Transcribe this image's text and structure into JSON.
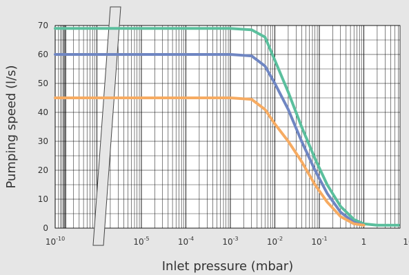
{
  "chart_data": {
    "type": "line",
    "xlabel": "Inlet pressure (mbar)",
    "ylabel": "Pumping speed (l/s)",
    "x_scale": "log",
    "x_axis_break": "between 1e-10 and 1e-5",
    "grid": true,
    "ylim": [
      0,
      70
    ],
    "y_ticks": [
      "0",
      "10",
      "20",
      "30",
      "40",
      "50",
      "60",
      "70"
    ],
    "x_tick_labels": [
      {
        "base": "10",
        "exp": "-10"
      },
      {
        "base": "10",
        "exp": "-5"
      },
      {
        "base": "10",
        "exp": "-4"
      },
      {
        "base": "10",
        "exp": "-3"
      },
      {
        "base": "10",
        "exp": "-2"
      },
      {
        "base": "10",
        "exp": "-1"
      },
      {
        "base": "1",
        "exp": ""
      },
      {
        "base": "10",
        "exp": ""
      }
    ],
    "series": [
      {
        "color": "#5bbf9d",
        "x": [
          1e-10,
          0.001,
          0.003,
          0.006,
          0.01,
          0.02,
          0.04,
          0.08,
          0.15,
          0.3,
          0.6,
          1,
          2,
          6
        ],
        "values": [
          69,
          69,
          68.5,
          66,
          58,
          47,
          35,
          24,
          15,
          7.5,
          3,
          1.5,
          1,
          1
        ]
      },
      {
        "color": "#6f86c2",
        "x": [
          1e-10,
          0.001,
          0.003,
          0.006,
          0.01,
          0.02,
          0.04,
          0.08,
          0.15,
          0.3,
          0.6,
          1
        ],
        "values": [
          60,
          60,
          59.5,
          56,
          50,
          41,
          30,
          20,
          12,
          5.5,
          2,
          1
        ]
      },
      {
        "color": "#f6ab62",
        "x": [
          1e-10,
          0.001,
          0.003,
          0.006,
          0.01,
          0.02,
          0.04,
          0.08,
          0.15,
          0.3,
          0.6,
          1
        ],
        "values": [
          45,
          45,
          44.5,
          41,
          36,
          30,
          23,
          15,
          9,
          4,
          1.5,
          1
        ]
      }
    ]
  }
}
